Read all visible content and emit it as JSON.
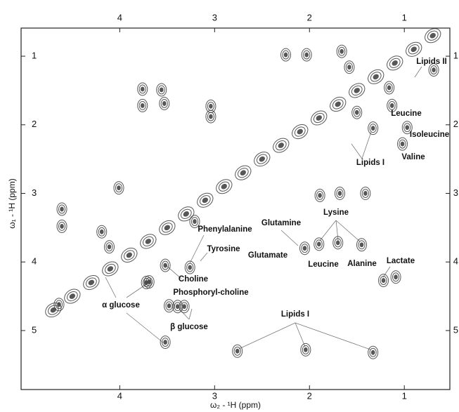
{
  "chart_data": {
    "type": "scatter",
    "x_label": "ω₂ - ¹H (ppm)",
    "y_label": "ω₁ - ¹H (ppm)",
    "xlim": [
      5.04,
      0.52
    ],
    "ylim": [
      0.59,
      5.86
    ],
    "xticks": [
      4,
      3,
      2,
      1
    ],
    "yticks": [
      1,
      2,
      3,
      4,
      5
    ],
    "color": "#3a3a3a",
    "series": [
      {
        "x": [
          4.61,
          4.61,
          4.64,
          3.69,
          3.52,
          3.39,
          3.32,
          3.48,
          3.76,
          3.76,
          3.56,
          3.53,
          3.04,
          3.04,
          2.25,
          2.03,
          1.66,
          1.58,
          1.5,
          1.33,
          1.16,
          1.13,
          1.02,
          0.97,
          1.89,
          1.68,
          1.41,
          1.9,
          1.7,
          1.45,
          1.09,
          1.22,
          2.05,
          2.76,
          2.04,
          1.33,
          0.69,
          3.52,
          3.72,
          4.19,
          4.11,
          4.01,
          3.26,
          3.21
        ],
        "values": [
          3.23,
          3.48,
          4.62,
          4.29,
          4.05,
          4.65,
          4.65,
          4.64,
          1.48,
          1.72,
          1.49,
          1.69,
          1.73,
          1.88,
          0.98,
          0.98,
          0.93,
          1.16,
          1.82,
          2.05,
          1.46,
          1.72,
          2.28,
          2.04,
          3.03,
          3.0,
          3.0,
          3.74,
          3.72,
          3.75,
          4.22,
          4.27,
          3.8,
          5.3,
          5.28,
          5.32,
          1.2,
          5.17,
          4.3,
          3.56,
          3.78,
          2.92,
          4.08,
          3.41
        ]
      },
      {
        "x": [
          4.7,
          4.5,
          4.3,
          4.1,
          3.9,
          3.7,
          3.5,
          3.3,
          3.1,
          2.9,
          2.7,
          2.5,
          2.3,
          2.1,
          1.9,
          1.7,
          1.5,
          1.3,
          1.1,
          0.9,
          0.7
        ],
        "values": [
          4.7,
          4.5,
          4.3,
          4.1,
          3.9,
          3.7,
          3.5,
          3.3,
          3.1,
          2.9,
          2.7,
          2.5,
          2.3,
          2.1,
          1.9,
          1.7,
          1.5,
          1.3,
          1.1,
          0.9,
          0.7
        ]
      }
    ],
    "annotations": [
      "Lipids II",
      "Leucine",
      "Isoleucine",
      "Lipids I",
      "Valine",
      "Lysine",
      "Glutamine",
      "Phenylalanine",
      "Tyrosine",
      "Glutamate",
      "Leucine",
      "Alanine",
      "Lactate",
      "Choline",
      "Phosphoryl-choline",
      "α glucose",
      "β glucose",
      "Lipids I"
    ]
  }
}
